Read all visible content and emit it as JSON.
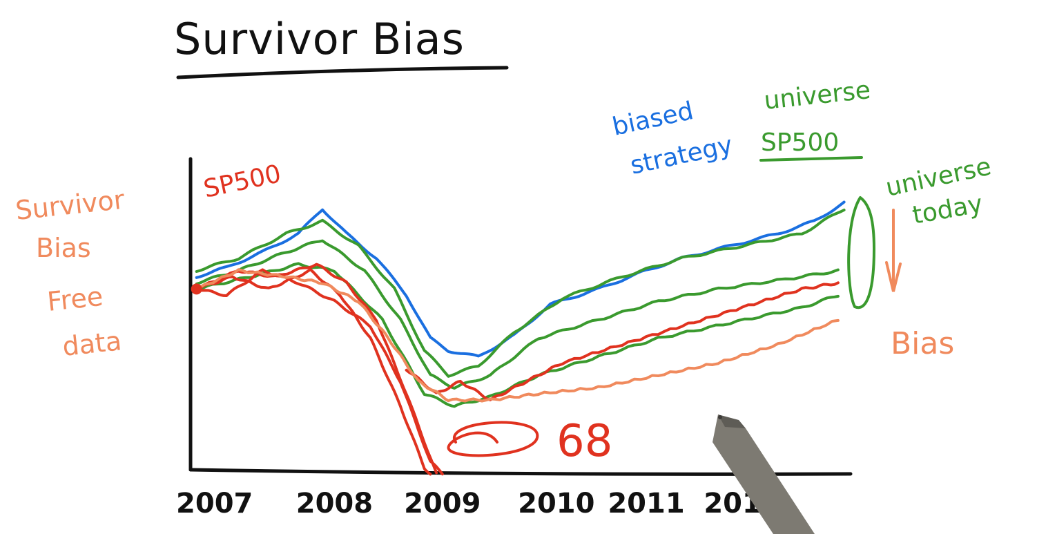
{
  "title": "Survivor Bias",
  "left_note": {
    "lines": [
      "Survivor",
      "Bias",
      "Free",
      "data"
    ],
    "color": "#f08a5d"
  },
  "annotations": {
    "sp500_red": "SP500",
    "biased_line1": "biased",
    "biased_line2": "strategy",
    "universe_sp500_line1": "universe",
    "universe_sp500_line2": "SP500",
    "universe_today_line1": "universe",
    "universe_today_line2": "today",
    "bias": "Bias",
    "count": "68"
  },
  "colors": {
    "blue": "#1a6fe0",
    "green": "#3a9a2e",
    "red": "#e0321f",
    "orange": "#f08a5d",
    "axis": "#111111",
    "pen": "#7d7a72"
  },
  "chart_data": {
    "type": "line",
    "title": "Survivor Bias",
    "x_categories": [
      "2007",
      "2008",
      "2009",
      "2010",
      "2011",
      "2012"
    ],
    "ylim": [
      0,
      100
    ],
    "series": [
      {
        "name": "biased strategy",
        "color": "#1a6fe0",
        "values": [
          [
            2006.95,
            64
          ],
          [
            2007.2,
            67
          ],
          [
            2007.5,
            72
          ],
          [
            2007.8,
            78
          ],
          [
            2008.0,
            86
          ],
          [
            2008.2,
            78
          ],
          [
            2008.45,
            70
          ],
          [
            2008.7,
            58
          ],
          [
            2008.9,
            44
          ],
          [
            2009.05,
            40
          ],
          [
            2009.3,
            38
          ],
          [
            2009.6,
            45
          ],
          [
            2009.9,
            55
          ],
          [
            2010.3,
            60
          ],
          [
            2010.7,
            66
          ],
          [
            2011.0,
            70
          ],
          [
            2011.4,
            74
          ],
          [
            2011.8,
            78
          ],
          [
            2012.1,
            82
          ],
          [
            2012.35,
            88
          ]
        ]
      },
      {
        "name": "universe SP500",
        "color": "#3a9a2e",
        "values": [
          [
            2006.95,
            66
          ],
          [
            2007.3,
            70
          ],
          [
            2007.7,
            78
          ],
          [
            2008.0,
            82
          ],
          [
            2008.3,
            74
          ],
          [
            2008.6,
            60
          ],
          [
            2008.85,
            40
          ],
          [
            2009.05,
            32
          ],
          [
            2009.3,
            35
          ],
          [
            2009.6,
            46
          ],
          [
            2010.0,
            57
          ],
          [
            2010.5,
            64
          ],
          [
            2011.0,
            70
          ],
          [
            2011.5,
            74
          ],
          [
            2012.0,
            78
          ],
          [
            2012.35,
            86
          ]
        ]
      },
      {
        "name": "universe SP500",
        "color": "#3a9a2e",
        "values": [
          [
            2006.95,
            62
          ],
          [
            2007.3,
            66
          ],
          [
            2007.7,
            72
          ],
          [
            2008.0,
            76
          ],
          [
            2008.35,
            66
          ],
          [
            2008.65,
            50
          ],
          [
            2008.9,
            32
          ],
          [
            2009.1,
            28
          ],
          [
            2009.4,
            32
          ],
          [
            2009.8,
            44
          ],
          [
            2010.3,
            50
          ],
          [
            2010.8,
            56
          ],
          [
            2011.3,
            60
          ],
          [
            2012.0,
            64
          ],
          [
            2012.3,
            66
          ]
        ]
      },
      {
        "name": "universe SP500",
        "color": "#3a9a2e",
        "values": [
          [
            2006.95,
            60
          ],
          [
            2007.4,
            64
          ],
          [
            2007.8,
            68
          ],
          [
            2008.1,
            66
          ],
          [
            2008.5,
            50
          ],
          [
            2008.85,
            26
          ],
          [
            2009.1,
            22
          ],
          [
            2009.4,
            25
          ],
          [
            2009.8,
            32
          ],
          [
            2010.3,
            38
          ],
          [
            2010.8,
            44
          ],
          [
            2011.4,
            49
          ],
          [
            2012.0,
            54
          ],
          [
            2012.3,
            58
          ]
        ]
      },
      {
        "name": "SP500",
        "color": "#e0321f",
        "values": [
          [
            2006.95,
            60
          ],
          [
            2007.2,
            58
          ],
          [
            2007.5,
            66
          ],
          [
            2007.8,
            62
          ],
          [
            2008.1,
            56
          ],
          [
            2008.4,
            48
          ],
          [
            2008.65,
            30
          ],
          [
            2008.9,
            4
          ],
          [
            2009.0,
            0
          ]
        ]
      },
      {
        "name": "SP500",
        "color": "#e0321f",
        "values": [
          [
            2006.95,
            60
          ],
          [
            2007.3,
            66
          ],
          [
            2007.6,
            64
          ],
          [
            2007.95,
            68
          ],
          [
            2008.2,
            62
          ],
          [
            2008.45,
            50
          ],
          [
            2008.7,
            26
          ],
          [
            2008.95,
            0
          ]
        ]
      },
      {
        "name": "SP500",
        "color": "#e0321f",
        "values": [
          [
            2006.95,
            60
          ],
          [
            2007.25,
            64
          ],
          [
            2007.55,
            60
          ],
          [
            2007.9,
            66
          ],
          [
            2008.15,
            58
          ],
          [
            2008.4,
            44
          ],
          [
            2008.65,
            22
          ],
          [
            2008.85,
            2
          ],
          [
            2008.9,
            0
          ]
        ]
      },
      {
        "name": "SP500",
        "color": "#e0321f",
        "values": [
          [
            2008.7,
            34
          ],
          [
            2008.95,
            26
          ],
          [
            2009.15,
            30
          ],
          [
            2009.4,
            24
          ],
          [
            2009.7,
            30
          ],
          [
            2010.0,
            36
          ],
          [
            2010.5,
            42
          ],
          [
            2011.0,
            48
          ],
          [
            2011.5,
            54
          ],
          [
            2012.0,
            60
          ],
          [
            2012.3,
            62
          ]
        ]
      },
      {
        "name": "Survivor Bias Free data",
        "color": "#f08a5d",
        "values": [
          [
            2006.95,
            60
          ],
          [
            2007.3,
            66
          ],
          [
            2007.7,
            64
          ],
          [
            2008.0,
            62
          ],
          [
            2008.3,
            56
          ],
          [
            2008.55,
            44
          ],
          [
            2008.8,
            30
          ],
          [
            2009.05,
            24
          ],
          [
            2009.4,
            24
          ],
          [
            2009.8,
            26
          ],
          [
            2010.3,
            28
          ],
          [
            2010.8,
            32
          ],
          [
            2011.3,
            36
          ],
          [
            2011.8,
            42
          ],
          [
            2012.3,
            50
          ]
        ]
      }
    ]
  }
}
